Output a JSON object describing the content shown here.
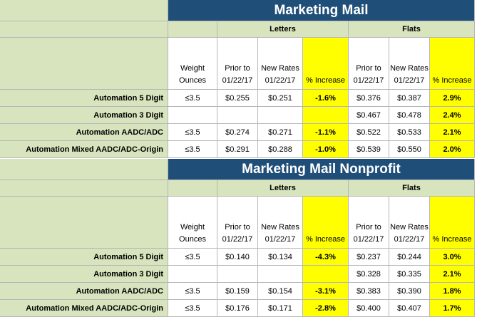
{
  "sections": [
    {
      "title": "Marketing Mail",
      "letters_label": "Letters",
      "flats_label": "Flats",
      "headers": {
        "weight": "Weight Ounces",
        "prior": "Prior to 01/22/17",
        "new": "New Rates 01/22/17",
        "increase": "% Increase"
      },
      "rows": [
        {
          "label": "Automation 5 Digit",
          "weight": "≤3.5",
          "l_prior": "$0.255",
          "l_new": "$0.251",
          "l_inc": "-1.6%",
          "f_prior": "$0.376",
          "f_new": "$0.387",
          "f_inc": "2.9%"
        },
        {
          "label": "Automation 3 Digit",
          "weight": "",
          "l_prior": "",
          "l_new": "",
          "l_inc": "",
          "f_prior": "$0.467",
          "f_new": "$0.478",
          "f_inc": "2.4%"
        },
        {
          "label": "Automation AADC/ADC",
          "weight": "≤3.5",
          "l_prior": "$0.274",
          "l_new": "$0.271",
          "l_inc": "-1.1%",
          "f_prior": "$0.522",
          "f_new": "$0.533",
          "f_inc": "2.1%"
        },
        {
          "label": "Automation Mixed AADC/ADC-Origin",
          "weight": "≤3.5",
          "l_prior": "$0.291",
          "l_new": "$0.288",
          "l_inc": "-1.0%",
          "f_prior": "$0.539",
          "f_new": "$0.550",
          "f_inc": "2.0%"
        }
      ]
    },
    {
      "title": "Marketing Mail Nonprofit",
      "letters_label": "Letters",
      "flats_label": "Flats",
      "headers": {
        "weight": "Weight Ounces",
        "prior": "Prior to 01/22/17",
        "new": "New Rates 01/22/17",
        "increase": "% Increase"
      },
      "rows": [
        {
          "label": "Automation 5 Digit",
          "weight": "≤3.5",
          "l_prior": "$0.140",
          "l_new": "$0.134",
          "l_inc": "-4.3%",
          "f_prior": "$0.237",
          "f_new": "$0.244",
          "f_inc": "3.0%"
        },
        {
          "label": "Automation 3 Digit",
          "weight": "",
          "l_prior": "",
          "l_new": "",
          "l_inc": "",
          "f_prior": "$0.328",
          "f_new": "$0.335",
          "f_inc": "2.1%"
        },
        {
          "label": "Automation AADC/ADC",
          "weight": "≤3.5",
          "l_prior": "$0.159",
          "l_new": "$0.154",
          "l_inc": "-3.1%",
          "f_prior": "$0.383",
          "f_new": "$0.390",
          "f_inc": "1.8%"
        },
        {
          "label": "Automation Mixed AADC/ADC-Origin",
          "weight": "≤3.5",
          "l_prior": "$0.176",
          "l_new": "$0.171",
          "l_inc": "-2.8%",
          "f_prior": "$0.400",
          "f_new": "$0.407",
          "f_inc": "1.7%"
        }
      ]
    }
  ],
  "colors": {
    "title_bg": "#1f4e79",
    "label_bg": "#d7e4bd",
    "highlight": "#ffff00"
  }
}
